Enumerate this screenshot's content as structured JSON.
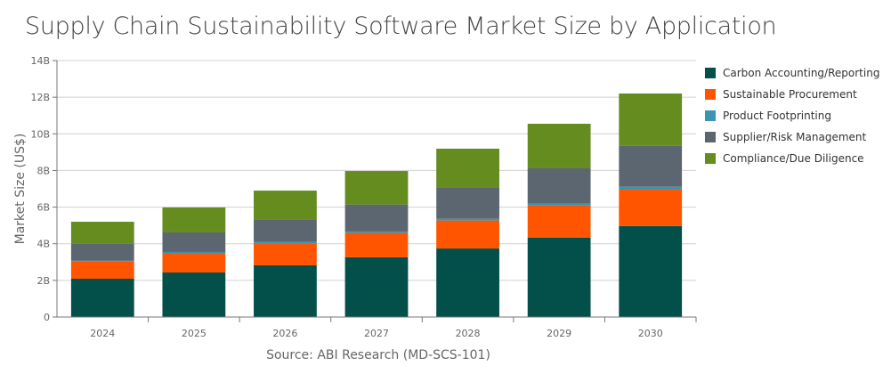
{
  "chart_data": {
    "type": "bar",
    "stacked": true,
    "title": "Supply Chain Sustainability Software Market Size by Application",
    "source": "Source: ABI Research (MD-SCS-101)",
    "xlabel": "",
    "ylabel": "Market Size (US$)",
    "ylim": [
      0,
      14
    ],
    "yticks": [
      0,
      2,
      4,
      6,
      8,
      10,
      12,
      14
    ],
    "ytick_labels": [
      "0",
      "2B",
      "4B",
      "6B",
      "8B",
      "10B",
      "12B",
      "14B"
    ],
    "grid": true,
    "legend_position": "right",
    "categories": [
      "2024",
      "2025",
      "2026",
      "2027",
      "2028",
      "2029",
      "2030"
    ],
    "series": [
      {
        "name": "Carbon Accounting/Reporting",
        "color": "#03504b",
        "values": [
          2.09,
          2.43,
          2.82,
          3.26,
          3.74,
          4.34,
          4.97
        ]
      },
      {
        "name": "Sustainable Procurement",
        "color": "#ff5500",
        "values": [
          0.94,
          1.02,
          1.18,
          1.33,
          1.53,
          1.74,
          1.98
        ]
      },
      {
        "name": "Product Footprinting",
        "color": "#3a94b4",
        "values": [
          0.04,
          0.1,
          0.1,
          0.08,
          0.09,
          0.11,
          0.16
        ]
      },
      {
        "name": "Supplier/Risk Management",
        "color": "#5c6670",
        "values": [
          0.92,
          1.07,
          1.2,
          1.47,
          1.69,
          1.93,
          2.24
        ]
      },
      {
        "name": "Compliance/Due Diligence",
        "color": "#648c1e",
        "values": [
          1.21,
          1.36,
          1.6,
          1.83,
          2.14,
          2.43,
          2.85
        ]
      }
    ]
  }
}
